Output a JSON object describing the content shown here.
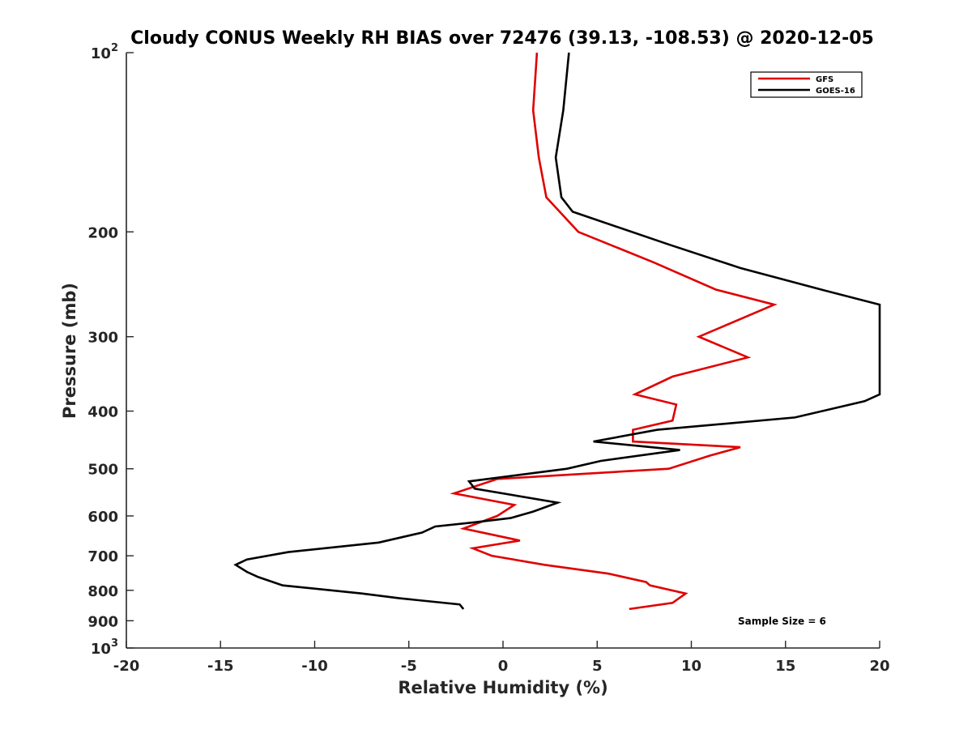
{
  "chart_data": {
    "type": "line",
    "title": "Cloudy CONUS Weekly RH BIAS over 72476 (39.13, -108.53) @ 2020-12-05",
    "xlabel": "Relative Humidity (%)",
    "ylabel": "Pressure (mb)",
    "xlim": [
      -20,
      20
    ],
    "ylim": [
      1000,
      100
    ],
    "yscale": "log",
    "grid": false,
    "legend_position": "top-right",
    "x_ticks": [
      -20,
      -15,
      -10,
      -5,
      0,
      5,
      10,
      15,
      20
    ],
    "x_tick_labels": [
      "-20",
      "-15",
      "-10",
      "-5",
      "0",
      "5",
      "10",
      "15",
      "20"
    ],
    "y_ticks": [
      100,
      200,
      300,
      400,
      500,
      600,
      700,
      800,
      900,
      1000
    ],
    "y_tick_labels": [
      {
        "base": "10",
        "sup": "2"
      },
      {
        "base": "200",
        "sup": ""
      },
      {
        "base": "300",
        "sup": ""
      },
      {
        "base": "400",
        "sup": ""
      },
      {
        "base": "500",
        "sup": ""
      },
      {
        "base": "600",
        "sup": ""
      },
      {
        "base": "700",
        "sup": ""
      },
      {
        "base": "800",
        "sup": ""
      },
      {
        "base": "900",
        "sup": ""
      },
      {
        "base": "10",
        "sup": "3"
      }
    ],
    "series": [
      {
        "name": "GFS",
        "color": "#e00000",
        "points": [
          [
            1.8,
            100
          ],
          [
            1.6,
            125
          ],
          [
            1.9,
            150
          ],
          [
            2.3,
            175
          ],
          [
            4.0,
            200
          ],
          [
            8.0,
            225
          ],
          [
            11.3,
            250
          ],
          [
            14.4,
            265
          ],
          [
            10.4,
            300
          ],
          [
            13.0,
            325
          ],
          [
            9.0,
            350
          ],
          [
            7.0,
            375
          ],
          [
            9.2,
            390
          ],
          [
            9.0,
            415
          ],
          [
            6.9,
            430
          ],
          [
            6.9,
            450
          ],
          [
            12.6,
            460
          ],
          [
            11.0,
            475
          ],
          [
            8.8,
            500
          ],
          [
            -0.3,
            520
          ],
          [
            -2.6,
            550
          ],
          [
            0.6,
            575
          ],
          [
            -0.3,
            600
          ],
          [
            -2.1,
            630
          ],
          [
            0.9,
            660
          ],
          [
            -1.6,
            680
          ],
          [
            -0.6,
            700
          ],
          [
            2.2,
            725
          ],
          [
            5.6,
            750
          ],
          [
            7.6,
            775
          ],
          [
            7.8,
            785
          ],
          [
            9.7,
            810
          ],
          [
            9.0,
            840
          ],
          [
            6.7,
            860
          ]
        ]
      },
      {
        "name": "GOES-16",
        "color": "#000000",
        "points": [
          [
            3.5,
            100
          ],
          [
            3.2,
            125
          ],
          [
            2.8,
            150
          ],
          [
            3.1,
            175
          ],
          [
            3.7,
            185
          ],
          [
            8.8,
            210
          ],
          [
            12.6,
            230
          ],
          [
            16.9,
            250
          ],
          [
            20.0,
            265
          ],
          [
            20.0,
            375
          ],
          [
            19.2,
            385
          ],
          [
            15.5,
            410
          ],
          [
            8.2,
            430
          ],
          [
            4.8,
            450
          ],
          [
            9.4,
            465
          ],
          [
            5.2,
            485
          ],
          [
            3.4,
            500
          ],
          [
            -1.8,
            525
          ],
          [
            -1.5,
            540
          ],
          [
            2.9,
            570
          ],
          [
            1.6,
            590
          ],
          [
            0.4,
            605
          ],
          [
            -1.5,
            615
          ],
          [
            -3.6,
            625
          ],
          [
            -4.3,
            640
          ],
          [
            -6.6,
            665
          ],
          [
            -11.4,
            690
          ],
          [
            -13.6,
            710
          ],
          [
            -14.2,
            725
          ],
          [
            -13.6,
            745
          ],
          [
            -13.0,
            760
          ],
          [
            -11.7,
            785
          ],
          [
            -7.5,
            810
          ],
          [
            -5.5,
            825
          ],
          [
            -2.3,
            845
          ],
          [
            -2.1,
            860
          ]
        ]
      }
    ],
    "annotations": [
      "Sample Size = 6"
    ]
  }
}
